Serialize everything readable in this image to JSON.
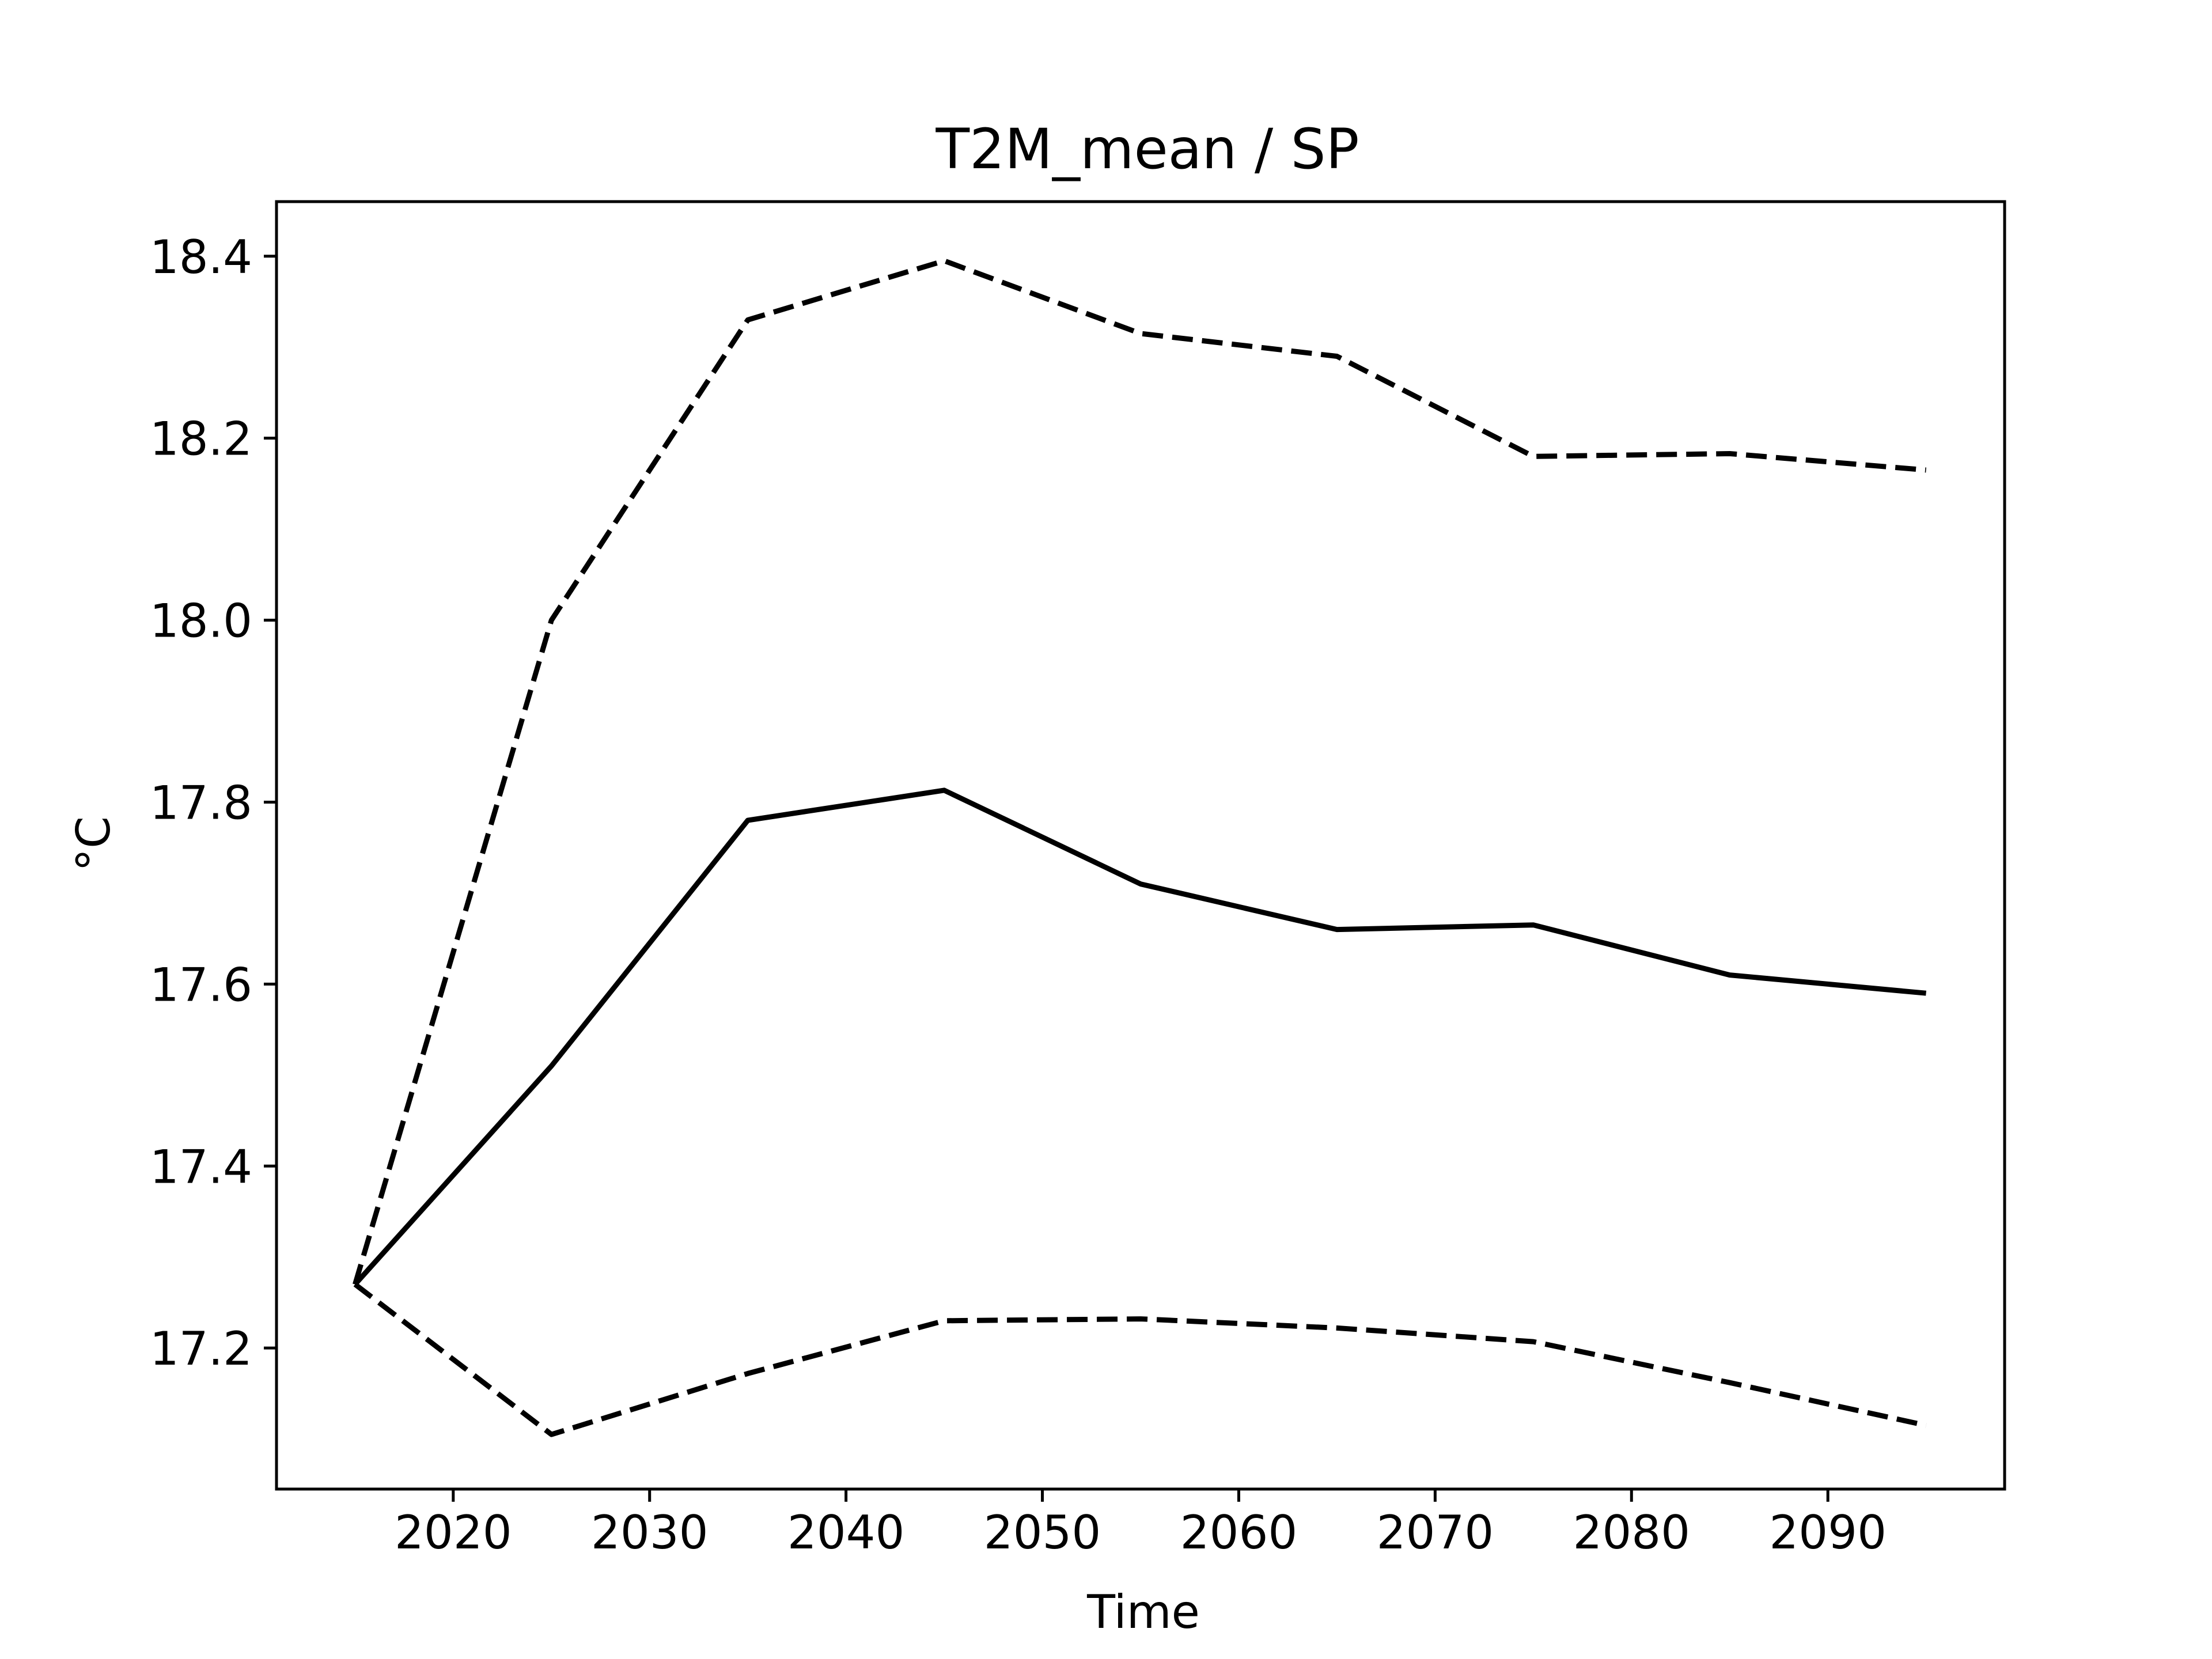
{
  "chart_data": {
    "type": "line",
    "title": "T2M_mean / SP",
    "xlabel": "Time",
    "ylabel": "°C",
    "xlim": [
      2011,
      2099
    ],
    "ylim": [
      17.045,
      18.46
    ],
    "xticks": [
      2020,
      2030,
      2040,
      2050,
      2060,
      2070,
      2080,
      2090
    ],
    "yticks": [
      17.2,
      17.4,
      17.6,
      17.8,
      18.0,
      18.2,
      18.4
    ],
    "xtick_labels": [
      "2020",
      "2030",
      "2040",
      "2050",
      "2060",
      "2070",
      "2080",
      "2090"
    ],
    "ytick_labels": [
      "17.2",
      "17.4",
      "17.6",
      "17.8",
      "18.0",
      "18.2",
      "18.4"
    ],
    "grid": false,
    "x": [
      2015,
      2025,
      2035,
      2045,
      2055,
      2065,
      2075,
      2085,
      2095
    ],
    "series": [
      {
        "style": "dashed",
        "color": "#000000",
        "values": [
          17.27,
          18.0,
          18.33,
          18.395,
          18.315,
          18.29,
          18.18,
          18.183,
          18.165
        ]
      },
      {
        "style": "solid",
        "color": "#000000",
        "values": [
          17.27,
          17.51,
          17.78,
          17.813,
          17.71,
          17.66,
          17.665,
          17.61,
          17.59
        ]
      },
      {
        "style": "dashed",
        "color": "#000000",
        "values": [
          17.27,
          17.105,
          17.172,
          17.23,
          17.232,
          17.222,
          17.207,
          17.162,
          17.115
        ]
      }
    ]
  }
}
